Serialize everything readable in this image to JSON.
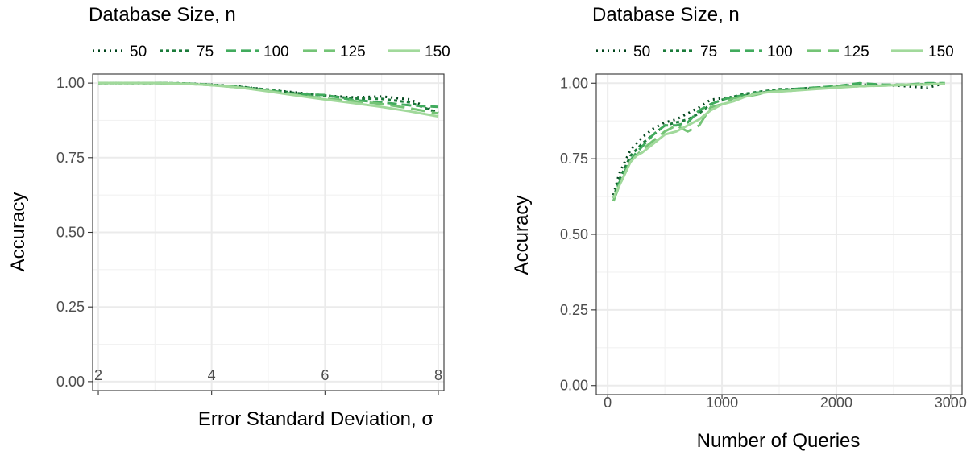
{
  "chart_data": [
    {
      "type": "line",
      "legend_title": "Database Size, n",
      "legend_position": "top",
      "xlabel": "Error Standard Deviation, σ",
      "ylabel": "Accuracy",
      "xlim": [
        1.9,
        8.1
      ],
      "ylim": [
        -0.03,
        1.03
      ],
      "xticks": [
        2,
        4,
        6,
        8
      ],
      "xtick_labels": [
        "2",
        "4",
        "6",
        "8"
      ],
      "yticks": [
        0,
        0.25,
        0.5,
        0.75,
        1
      ],
      "ytick_labels": [
        "0.00",
        "0.25",
        "0.50",
        "0.75",
        "1.00"
      ],
      "grid": true,
      "x": [
        2,
        2.5,
        3,
        3.5,
        4,
        4.5,
        5,
        5.5,
        6,
        6.5,
        7,
        7.5,
        8
      ],
      "series": [
        {
          "name": "50",
          "values": [
            1.0,
            1.0,
            1.0,
            0.999,
            0.995,
            0.988,
            0.978,
            0.968,
            0.958,
            0.952,
            0.955,
            0.945,
            0.9
          ]
        },
        {
          "name": "75",
          "values": [
            1.0,
            1.0,
            1.0,
            0.999,
            0.994,
            0.987,
            0.978,
            0.966,
            0.958,
            0.948,
            0.947,
            0.935,
            0.9
          ]
        },
        {
          "name": "100",
          "values": [
            1.0,
            1.0,
            1.0,
            0.999,
            0.994,
            0.986,
            0.976,
            0.962,
            0.96,
            0.943,
            0.935,
            0.925,
            0.92
          ]
        },
        {
          "name": "125",
          "values": [
            1.0,
            1.0,
            1.0,
            0.998,
            0.993,
            0.985,
            0.974,
            0.96,
            0.948,
            0.94,
            0.93,
            0.915,
            0.898
          ]
        },
        {
          "name": "150",
          "values": [
            1.0,
            1.0,
            1.0,
            0.998,
            0.993,
            0.985,
            0.972,
            0.958,
            0.945,
            0.933,
            0.92,
            0.905,
            0.888
          ]
        }
      ]
    },
    {
      "type": "line",
      "legend_title": "Database Size, n",
      "legend_position": "top",
      "xlabel": "Number of Queries",
      "ylabel": "Accuracy",
      "xlim": [
        -100,
        3100
      ],
      "ylim": [
        -0.03,
        1.03
      ],
      "xticks": [
        0,
        1000,
        2000,
        3000
      ],
      "xtick_labels": [
        "0",
        "1000",
        "2000",
        "3000"
      ],
      "yticks": [
        0,
        0.25,
        0.5,
        0.75,
        1
      ],
      "ytick_labels": [
        "0.00",
        "0.25",
        "0.50",
        "0.75",
        "1.00"
      ],
      "grid": true,
      "x": [
        50,
        100,
        150,
        200,
        250,
        300,
        400,
        500,
        600,
        700,
        800,
        900,
        1000,
        1100,
        1200,
        1300,
        1400,
        1500,
        1600,
        1800,
        2000,
        2200,
        2400,
        2600,
        2800,
        2950
      ],
      "series": [
        {
          "name": "50",
          "values": [
            0.63,
            0.7,
            0.74,
            0.78,
            0.8,
            0.82,
            0.85,
            0.87,
            0.88,
            0.9,
            0.92,
            0.945,
            0.95,
            0.955,
            0.96,
            0.965,
            0.972,
            0.975,
            0.98,
            0.982,
            0.99,
            0.995,
            0.995,
            0.99,
            0.985,
            1.0
          ]
        },
        {
          "name": "75",
          "values": [
            0.62,
            0.68,
            0.72,
            0.76,
            0.78,
            0.8,
            0.83,
            0.86,
            0.87,
            0.88,
            0.9,
            0.93,
            0.945,
            0.955,
            0.965,
            0.97,
            0.975,
            0.98,
            0.98,
            0.985,
            0.988,
            0.99,
            0.993,
            0.995,
            0.997,
            1.0
          ]
        },
        {
          "name": "100",
          "values": [
            0.61,
            0.67,
            0.71,
            0.745,
            0.77,
            0.79,
            0.83,
            0.86,
            0.86,
            0.87,
            0.91,
            0.93,
            0.945,
            0.955,
            0.96,
            0.968,
            0.972,
            0.975,
            0.98,
            0.985,
            0.99,
            1.0,
            0.995,
            0.995,
            1.0,
            1.0
          ]
        },
        {
          "name": "125",
          "values": [
            0.61,
            0.66,
            0.7,
            0.74,
            0.76,
            0.78,
            0.81,
            0.84,
            0.86,
            0.84,
            0.86,
            0.92,
            0.93,
            0.95,
            0.955,
            0.962,
            0.97,
            0.975,
            0.975,
            0.982,
            0.988,
            0.99,
            0.992,
            0.994,
            0.996,
            0.998
          ]
        },
        {
          "name": "150",
          "values": [
            0.62,
            0.66,
            0.7,
            0.74,
            0.76,
            0.77,
            0.8,
            0.83,
            0.84,
            0.86,
            0.88,
            0.91,
            0.93,
            0.94,
            0.955,
            0.965,
            0.97,
            0.972,
            0.975,
            0.98,
            0.985,
            0.99,
            0.992,
            0.995,
            0.996,
            0.998
          ]
        }
      ]
    }
  ],
  "series_colors": [
    "#00441b",
    "#1b7b3a",
    "#41ab5d",
    "#74c476",
    "#a1d99b"
  ],
  "series_dashes": [
    "2,5",
    "4,4",
    "12,6",
    "18,8",
    ""
  ]
}
